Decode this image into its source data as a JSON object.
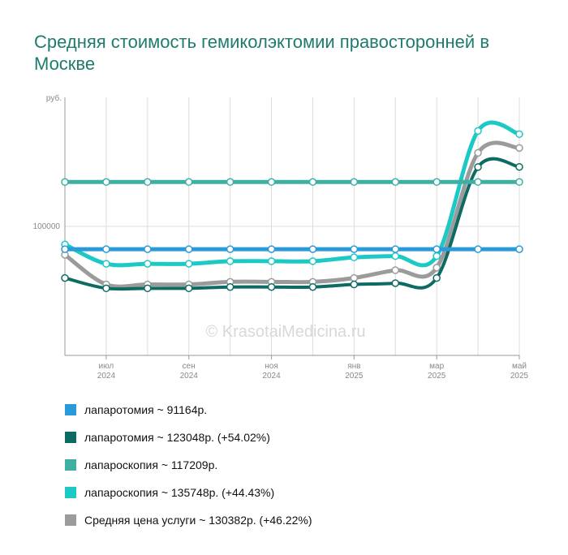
{
  "chart_data": {
    "type": "line",
    "title": "Средняя стоимость гемиколэктомии правосторонней в Москве",
    "ylabel": "руб.",
    "ylim": [
      50000,
      150000
    ],
    "yticks": [
      {
        "value": 100000,
        "label": "100000"
      }
    ],
    "watermark": "© KrasotaiMedicina.ru",
    "x": [
      0,
      1,
      2,
      3,
      4,
      5,
      6,
      7,
      8,
      9,
      10,
      11
    ],
    "xticks": [
      {
        "x": 1,
        "line1": "июл",
        "line2": "2024"
      },
      {
        "x": 3,
        "line1": "сен",
        "line2": "2024"
      },
      {
        "x": 5,
        "line1": "ноя",
        "line2": "2024"
      },
      {
        "x": 7,
        "line1": "янв",
        "line2": "2025"
      },
      {
        "x": 9,
        "line1": "мар",
        "line2": "2025"
      },
      {
        "x": 11,
        "line1": "май",
        "line2": "2025"
      }
    ],
    "grid": true,
    "series": [
      {
        "name": "лапаротомия ~ 91164р.",
        "color": "#2a9ad8",
        "width": 5,
        "values": [
          91164,
          91164,
          91164,
          91164,
          91164,
          91164,
          91164,
          91164,
          91164,
          91164,
          91164,
          91164
        ]
      },
      {
        "name": "лапаротомия ~ 123048р. (+54.02%)",
        "color": "#0e6b63",
        "width": 4,
        "values": [
          80000,
          76000,
          76000,
          76000,
          76500,
          76500,
          76500,
          77500,
          78000,
          80000,
          123000,
          123048
        ]
      },
      {
        "name": "лапароскопия ~ 117209р.",
        "color": "#3db0a3",
        "width": 5,
        "values": [
          117209,
          117209,
          117209,
          117209,
          117209,
          117209,
          117209,
          117209,
          117209,
          117209,
          117209,
          117209
        ]
      },
      {
        "name": "лапароскопия ~ 135748р. (+44.43%)",
        "color": "#1cc9c4",
        "width": 5,
        "values": [
          93000,
          85500,
          85500,
          85500,
          86500,
          86500,
          86500,
          88000,
          88500,
          88500,
          137000,
          135748
        ]
      },
      {
        "name": "Средняя цена услуги ~ 130382р. (+46.22%)",
        "color": "#9b9b9b",
        "width": 5,
        "values": [
          89000,
          77500,
          77500,
          77500,
          78500,
          78500,
          78500,
          80000,
          83000,
          84000,
          128500,
          130382
        ]
      }
    ]
  }
}
